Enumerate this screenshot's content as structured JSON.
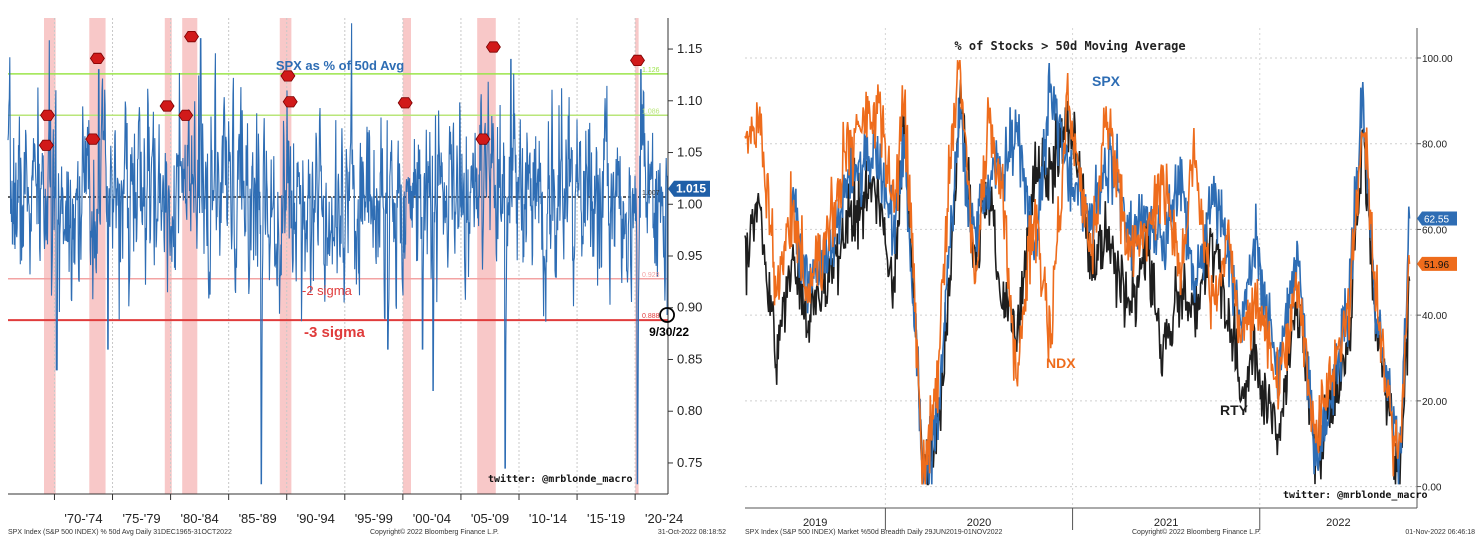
{
  "chart_data": [
    {
      "type": "line",
      "title": "SPX as % of 50d Avg",
      "xlabel": "",
      "ylabel": "",
      "ylim": [
        0.72,
        1.18
      ],
      "x_range": [
        1966.0,
        2022.83
      ],
      "y_ticks": [
        0.75,
        0.8,
        0.85,
        0.9,
        0.95,
        1.0,
        1.05,
        1.1,
        1.15
      ],
      "x_tick_labels": [
        "'70-'74",
        "'75-'79",
        "'80-'84",
        "'85-'89",
        "'90-'94",
        "'95-'99",
        "'00-'04",
        "'05-'09",
        "'10-'14",
        "'15-'19",
        "'20-'24"
      ],
      "period_boundaries": [
        1970,
        1975,
        1980,
        1985,
        1990,
        1995,
        2000,
        2005,
        2010,
        2015,
        2020
      ],
      "reference_lines": [
        {
          "name": "upper_3sigma",
          "value": 1.126,
          "label": "1.126",
          "color": "#9be54a"
        },
        {
          "name": "upper_2sigma",
          "value": 1.086,
          "label": "1.086",
          "color": "#b9e67a"
        },
        {
          "name": "mean",
          "value": 1.007,
          "label": "1.007",
          "color": "#000000"
        },
        {
          "name": "lower_2sigma",
          "value": 0.928,
          "label": "0.928",
          "color": "#f3a3a3",
          "text": "-2 sigma"
        },
        {
          "name": "lower_3sigma",
          "value": 0.888,
          "label": "0.888",
          "color": "#e03c3c",
          "text": "-3 sigma"
        }
      ],
      "shaded_periods": [
        [
          1969.1,
          1970.1
        ],
        [
          1973.0,
          1974.4
        ],
        [
          1979.5,
          1980.1
        ],
        [
          1981.0,
          1982.3
        ],
        [
          1989.4,
          1990.4
        ],
        [
          2000.0,
          2000.7
        ],
        [
          2006.4,
          2008.0
        ],
        [
          2020.0,
          2020.3
        ]
      ],
      "signal_markers": [
        [
          1969.4,
          1.086
        ],
        [
          1969.3,
          1.057
        ],
        [
          1973.3,
          1.063
        ],
        [
          1973.7,
          1.141
        ],
        [
          1979.7,
          1.095
        ],
        [
          1981.3,
          1.086
        ],
        [
          1981.8,
          1.162
        ],
        [
          1990.1,
          1.124
        ],
        [
          1990.3,
          1.099
        ],
        [
          2000.2,
          1.098
        ],
        [
          2006.9,
          1.063
        ],
        [
          2007.8,
          1.152
        ],
        [
          2020.2,
          1.139
        ]
      ],
      "current_value": 1.015,
      "current_value_label": "1.015",
      "annotation_date": "9/30/22",
      "annotation_value": 0.893,
      "series": [
        {
          "name": "SPX % 50d Avg",
          "color": "#2e6db4"
        }
      ],
      "footer_left": "SPX Index (S&P 500 INDEX) % 50d Avg  Daily 31DEC1965-31OCT2022",
      "footer_center": "Copyright© 2022 Bloomberg Finance L.P.",
      "footer_right": "31-Oct-2022 08:18:52",
      "watermark": "twitter: @mrblonde_macro"
    },
    {
      "type": "line",
      "title": "% of Stocks > 50d Moving Average",
      "xlabel": "",
      "ylabel": "",
      "ylim": [
        -5,
        107
      ],
      "x_range": [
        2019.25,
        2022.84
      ],
      "y_ticks": [
        0,
        20,
        40,
        60,
        80,
        100
      ],
      "y_tick_labels": [
        "0.00",
        "20.00",
        "40.00",
        "60.00",
        "80.00",
        "100.00"
      ],
      "x_tick_labels": [
        "2019",
        "2020",
        "2021",
        "2022"
      ],
      "year_boundaries": [
        2019.25,
        2020.0,
        2021.0,
        2022.0,
        2022.84
      ],
      "series": [
        {
          "name": "SPX",
          "color": "#2e6db4",
          "last_value": 62.55,
          "last_label": "62.55",
          "anchors": [
            [
              2019.5,
              70
            ],
            [
              2019.58,
              45
            ],
            [
              2019.7,
              55
            ],
            [
              2019.8,
              72
            ],
            [
              2019.95,
              78
            ],
            [
              2020.05,
              60
            ],
            [
              2020.1,
              80
            ],
            [
              2020.2,
              3
            ],
            [
              2020.28,
              15
            ],
            [
              2020.4,
              90
            ],
            [
              2020.45,
              60
            ],
            [
              2020.55,
              70
            ],
            [
              2020.7,
              83
            ],
            [
              2020.8,
              55
            ],
            [
              2020.88,
              92
            ],
            [
              2020.97,
              75
            ],
            [
              2021.1,
              62
            ],
            [
              2021.2,
              78
            ],
            [
              2021.3,
              60
            ],
            [
              2021.4,
              63
            ],
            [
              2021.48,
              55
            ],
            [
              2021.58,
              73
            ],
            [
              2021.65,
              45
            ],
            [
              2021.75,
              69
            ],
            [
              2021.83,
              55
            ],
            [
              2021.9,
              36
            ],
            [
              2021.97,
              55
            ],
            [
              2022.1,
              28
            ],
            [
              2022.2,
              55
            ],
            [
              2022.3,
              5
            ],
            [
              2022.4,
              25
            ],
            [
              2022.48,
              45
            ],
            [
              2022.55,
              92
            ],
            [
              2022.62,
              40
            ],
            [
              2022.68,
              25
            ],
            [
              2022.75,
              5
            ],
            [
              2022.8,
              62.55
            ]
          ]
        },
        {
          "name": "NDX",
          "color": "#ee6c1c",
          "last_value": 51.96,
          "last_label": "51.96",
          "anchors": [
            [
              2019.25,
              80
            ],
            [
              2019.33,
              85
            ],
            [
              2019.42,
              45
            ],
            [
              2019.5,
              65
            ],
            [
              2019.58,
              45
            ],
            [
              2019.7,
              60
            ],
            [
              2019.8,
              80
            ],
            [
              2019.95,
              90
            ],
            [
              2020.05,
              65
            ],
            [
              2020.1,
              95
            ],
            [
              2020.2,
              4
            ],
            [
              2020.28,
              25
            ],
            [
              2020.35,
              80
            ],
            [
              2020.4,
              98
            ],
            [
              2020.48,
              45
            ],
            [
              2020.55,
              85
            ],
            [
              2020.62,
              70
            ],
            [
              2020.7,
              25
            ],
            [
              2020.8,
              65
            ],
            [
              2020.88,
              35
            ],
            [
              2020.97,
              90
            ],
            [
              2021.05,
              70
            ],
            [
              2021.1,
              53
            ],
            [
              2021.18,
              88
            ],
            [
              2021.3,
              55
            ],
            [
              2021.4,
              60
            ],
            [
              2021.48,
              72
            ],
            [
              2021.58,
              50
            ],
            [
              2021.65,
              78
            ],
            [
              2021.75,
              42
            ],
            [
              2021.83,
              60
            ],
            [
              2021.9,
              33
            ],
            [
              2021.97,
              45
            ],
            [
              2022.1,
              24
            ],
            [
              2022.2,
              50
            ],
            [
              2022.3,
              10
            ],
            [
              2022.4,
              30
            ],
            [
              2022.48,
              40
            ],
            [
              2022.55,
              88
            ],
            [
              2022.62,
              45
            ],
            [
              2022.68,
              20
            ],
            [
              2022.75,
              7
            ],
            [
              2022.8,
              51.96
            ]
          ]
        },
        {
          "name": "RTY",
          "color": "#1e1e1e",
          "anchors": [
            [
              2019.25,
              55
            ],
            [
              2019.33,
              65
            ],
            [
              2019.42,
              30
            ],
            [
              2019.5,
              55
            ],
            [
              2019.58,
              40
            ],
            [
              2019.7,
              50
            ],
            [
              2019.8,
              60
            ],
            [
              2019.95,
              70
            ],
            [
              2020.05,
              45
            ],
            [
              2020.1,
              85
            ],
            [
              2020.2,
              2
            ],
            [
              2020.28,
              12
            ],
            [
              2020.35,
              50
            ],
            [
              2020.4,
              95
            ],
            [
              2020.48,
              50
            ],
            [
              2020.55,
              70
            ],
            [
              2020.62,
              45
            ],
            [
              2020.7,
              35
            ],
            [
              2020.8,
              75
            ],
            [
              2020.88,
              70
            ],
            [
              2020.97,
              88
            ],
            [
              2021.05,
              70
            ],
            [
              2021.1,
              50
            ],
            [
              2021.18,
              60
            ],
            [
              2021.3,
              42
            ],
            [
              2021.4,
              55
            ],
            [
              2021.48,
              30
            ],
            [
              2021.58,
              45
            ],
            [
              2021.65,
              42
            ],
            [
              2021.75,
              58
            ],
            [
              2021.83,
              40
            ],
            [
              2021.9,
              20
            ],
            [
              2021.97,
              30
            ],
            [
              2022.1,
              12
            ],
            [
              2022.2,
              45
            ],
            [
              2022.3,
              8
            ],
            [
              2022.4,
              20
            ],
            [
              2022.48,
              35
            ],
            [
              2022.55,
              80
            ],
            [
              2022.62,
              40
            ],
            [
              2022.68,
              20
            ],
            [
              2022.75,
              3
            ],
            [
              2022.8,
              48
            ]
          ]
        }
      ],
      "footer_left": "SPX Index (S&P 500 INDEX) Market %50d Breadth  Daily 29JUN2019-01NOV2022",
      "footer_center": "Copyright© 2022 Bloomberg Finance L.P.",
      "footer_right": "01-Nov-2022 06:46:18",
      "watermark": "twitter: @mrblonde_macro"
    }
  ]
}
